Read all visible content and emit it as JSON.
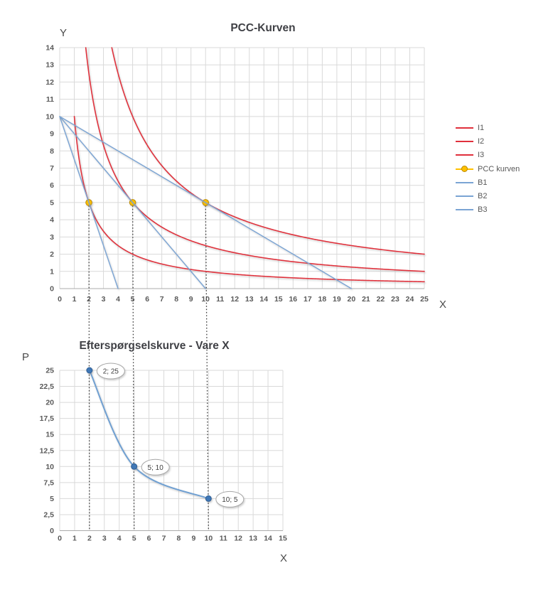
{
  "colors": {
    "indifference_red": "#e0303c",
    "budget_blue": "#7aa4d4",
    "pcc_gold": "#ffc000",
    "pcc_gold_stroke": "#b98a00",
    "demand_line_blue": "#6fa0d2",
    "demand_marker_blue": "#3f77b6",
    "demand_marker_stroke": "#2e5e94",
    "grid": "#d9d9d9",
    "axis": "#ababab",
    "tick_text": "#595959",
    "title_text": "#3f4045",
    "callout_border": "#a6a6a6",
    "callout_text": "#404040",
    "connector": "#3a3a3a"
  },
  "legend": {
    "position": "right",
    "items": [
      {
        "label": "I1",
        "color_key": "indifference_red",
        "marker": false
      },
      {
        "label": "I2",
        "color_key": "indifference_red",
        "marker": false
      },
      {
        "label": "I3",
        "color_key": "indifference_red",
        "marker": false
      },
      {
        "label": "PCC kurven",
        "color_key": "pcc_gold",
        "marker": true
      },
      {
        "label": "B1",
        "color_key": "budget_blue",
        "marker": false
      },
      {
        "label": "B2",
        "color_key": "budget_blue",
        "marker": false
      },
      {
        "label": "B3",
        "color_key": "budget_blue",
        "marker": false
      }
    ]
  },
  "chart_data": [
    {
      "type": "line",
      "title": "PCC-Kurven",
      "xlabel": "X",
      "ylabel": "Y",
      "grid": true,
      "legend_position": "right",
      "x_axis": {
        "min": 0,
        "max": 25,
        "tick_values": [
          0,
          1,
          2,
          3,
          4,
          5,
          6,
          7,
          8,
          9,
          10,
          11,
          12,
          13,
          14,
          15,
          16,
          17,
          18,
          19,
          20,
          21,
          22,
          23,
          24,
          25
        ],
        "tick_labels": [
          "0",
          "1",
          "2",
          "3",
          "4",
          "5",
          "6",
          "7",
          "8",
          "9",
          "10",
          "11",
          "12",
          "13",
          "14",
          "15",
          "16",
          "17",
          "18",
          "19",
          "20",
          "21",
          "22",
          "23",
          "24",
          "25"
        ]
      },
      "y_axis": {
        "min": 0,
        "max": 14,
        "tick_values": [
          0,
          1,
          2,
          3,
          4,
          5,
          6,
          7,
          8,
          9,
          10,
          11,
          12,
          13,
          14
        ],
        "tick_labels": [
          "0",
          "1",
          "2",
          "3",
          "4",
          "5",
          "6",
          "7",
          "8",
          "9",
          "10",
          "11",
          "12",
          "13",
          "14"
        ]
      },
      "series": [
        {
          "name": "I1",
          "kind": "hyperbola",
          "k": 10,
          "x_start": 1,
          "x_end": 25,
          "color_key": "indifference_red",
          "width": 1.6
        },
        {
          "name": "I2",
          "kind": "hyperbola",
          "k": 25,
          "x_end": 25,
          "color_key": "indifference_red",
          "width": 1.6
        },
        {
          "name": "I3",
          "kind": "hyperbola",
          "k": 50,
          "x_end": 25,
          "color_key": "indifference_red",
          "width": 1.6
        },
        {
          "name": "PCC kurven",
          "kind": "line",
          "points": [
            [
              2,
              5
            ],
            [
              5,
              5
            ],
            [
              10,
              5
            ]
          ],
          "color_key": "pcc_gold",
          "width": 2,
          "marker": {
            "shape": "circle",
            "r": 4.3,
            "fill_key": "pcc_gold",
            "stroke_key": "pcc_gold_stroke"
          }
        },
        {
          "name": "B1",
          "kind": "line",
          "points": [
            [
              0,
              10
            ],
            [
              4,
              0
            ]
          ],
          "color_key": "budget_blue",
          "width": 1.4
        },
        {
          "name": "B2",
          "kind": "line",
          "points": [
            [
              0,
              10
            ],
            [
              10,
              0
            ]
          ],
          "color_key": "budget_blue",
          "width": 1.4
        },
        {
          "name": "B3",
          "kind": "line",
          "points": [
            [
              0,
              10
            ],
            [
              20,
              0
            ]
          ],
          "color_key": "budget_blue",
          "width": 1.4
        }
      ]
    },
    {
      "type": "line",
      "title": "Efterspørgselskurve - Vare X",
      "xlabel": "X",
      "ylabel": "P",
      "grid": true,
      "x_axis": {
        "min": 0,
        "max": 15,
        "tick_values": [
          0,
          1,
          2,
          3,
          4,
          5,
          6,
          7,
          8,
          9,
          10,
          11,
          12,
          13,
          14,
          15
        ],
        "tick_labels": [
          "0",
          "1",
          "2",
          "3",
          "4",
          "5",
          "6",
          "7",
          "8",
          "9",
          "10",
          "11",
          "12",
          "13",
          "14",
          "15"
        ]
      },
      "y_axis": {
        "min": 0,
        "max": 25,
        "tick_values": [
          0,
          2.5,
          5,
          7.5,
          10,
          12.5,
          15,
          17.5,
          20,
          22.5,
          25
        ],
        "tick_labels": [
          "0",
          "2,5",
          "5",
          "7,5",
          "10",
          "12,5",
          "15",
          "17,5",
          "20",
          "22,5",
          "25"
        ]
      },
      "series": [
        {
          "name": "Efterspørgsel",
          "kind": "smooth",
          "points": [
            [
              2,
              25
            ],
            [
              5,
              10
            ],
            [
              10,
              5
            ]
          ],
          "color_key": "demand_line_blue",
          "width": 2,
          "marker": {
            "shape": "circle",
            "r": 4,
            "fill_key": "demand_marker_blue",
            "stroke_key": "demand_marker_stroke"
          },
          "point_labels": [
            {
              "text": "2; 25",
              "point": [
                2,
                25
              ]
            },
            {
              "text": "5; 10",
              "point": [
                5,
                10
              ]
            },
            {
              "text": "10; 5",
              "point": [
                10,
                5
              ]
            }
          ]
        }
      ]
    }
  ],
  "connectors": {
    "style": "dotted",
    "x_values": [
      2,
      5,
      10
    ],
    "top_chart_y": 5,
    "bottom_chart_y": 0
  }
}
